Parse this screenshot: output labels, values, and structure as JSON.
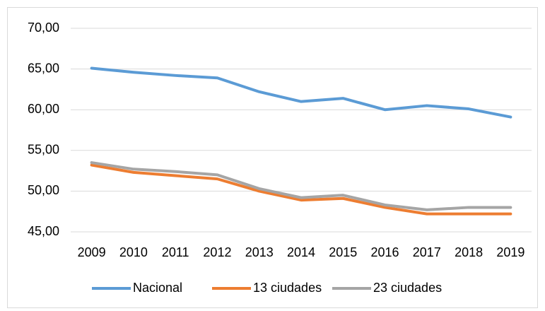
{
  "chart_data": {
    "type": "line",
    "categories": [
      "2009",
      "2010",
      "2011",
      "2012",
      "2013",
      "2014",
      "2015",
      "2016",
      "2017",
      "2018",
      "2019"
    ],
    "series": [
      {
        "name": "Nacional",
        "color": "#5b9bd5",
        "values": [
          65.1,
          64.6,
          64.2,
          63.9,
          62.2,
          61.0,
          61.4,
          60.0,
          60.5,
          60.1,
          59.1
        ]
      },
      {
        "name": "13 ciudades",
        "color": "#ed7d31",
        "values": [
          53.2,
          52.3,
          51.9,
          51.5,
          50.0,
          48.9,
          49.1,
          48.0,
          47.2,
          47.2,
          47.2
        ]
      },
      {
        "name": "23 ciudades",
        "color": "#a5a5a5",
        "values": [
          53.5,
          52.7,
          52.4,
          52.0,
          50.3,
          49.2,
          49.5,
          48.3,
          47.7,
          48.0,
          48.0
        ]
      }
    ],
    "ylim": [
      45,
      70
    ],
    "yticks": [
      {
        "value": 45,
        "label": "45,00"
      },
      {
        "value": 50,
        "label": "50,00"
      },
      {
        "value": 55,
        "label": "55,00"
      },
      {
        "value": 60,
        "label": "60,00"
      },
      {
        "value": 65,
        "label": "65,00"
      },
      {
        "value": 70,
        "label": "70,00"
      }
    ],
    "grid": true,
    "legend": "bottom"
  }
}
